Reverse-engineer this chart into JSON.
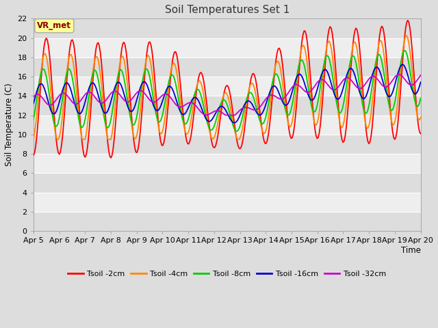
{
  "title": "Soil Temperatures Set 1",
  "xlabel": "Time",
  "ylabel": "Soil Temperature (C)",
  "ylim": [
    0,
    22
  ],
  "yticks": [
    0,
    2,
    4,
    6,
    8,
    10,
    12,
    14,
    16,
    18,
    20,
    22
  ],
  "x_labels": [
    "Apr 5",
    "Apr 6",
    "Apr 7",
    "Apr 8",
    "Apr 9",
    "Apr 10",
    "Apr 11",
    "Apr 12",
    "Apr 13",
    "Apr 14",
    "Apr 15",
    "Apr 16",
    "Apr 17",
    "Apr 18",
    "Apr 19",
    "Apr 20"
  ],
  "annotation_text": "VR_met",
  "annotation_color": "#880000",
  "annotation_bg": "#ffff99",
  "annotation_edge": "#aaaaaa",
  "colors": {
    "Tsoil -2cm": "#ff0000",
    "Tsoil -4cm": "#ff8800",
    "Tsoil -8cm": "#00cc00",
    "Tsoil -16cm": "#0000cc",
    "Tsoil -32cm": "#cc00cc"
  },
  "fig_bg": "#dddddd",
  "plot_bg": "#eeeeee",
  "plot_bg_dark": "#dddddd",
  "grid_color": "#ffffff",
  "figsize": [
    6.4,
    4.8
  ],
  "dpi": 100
}
